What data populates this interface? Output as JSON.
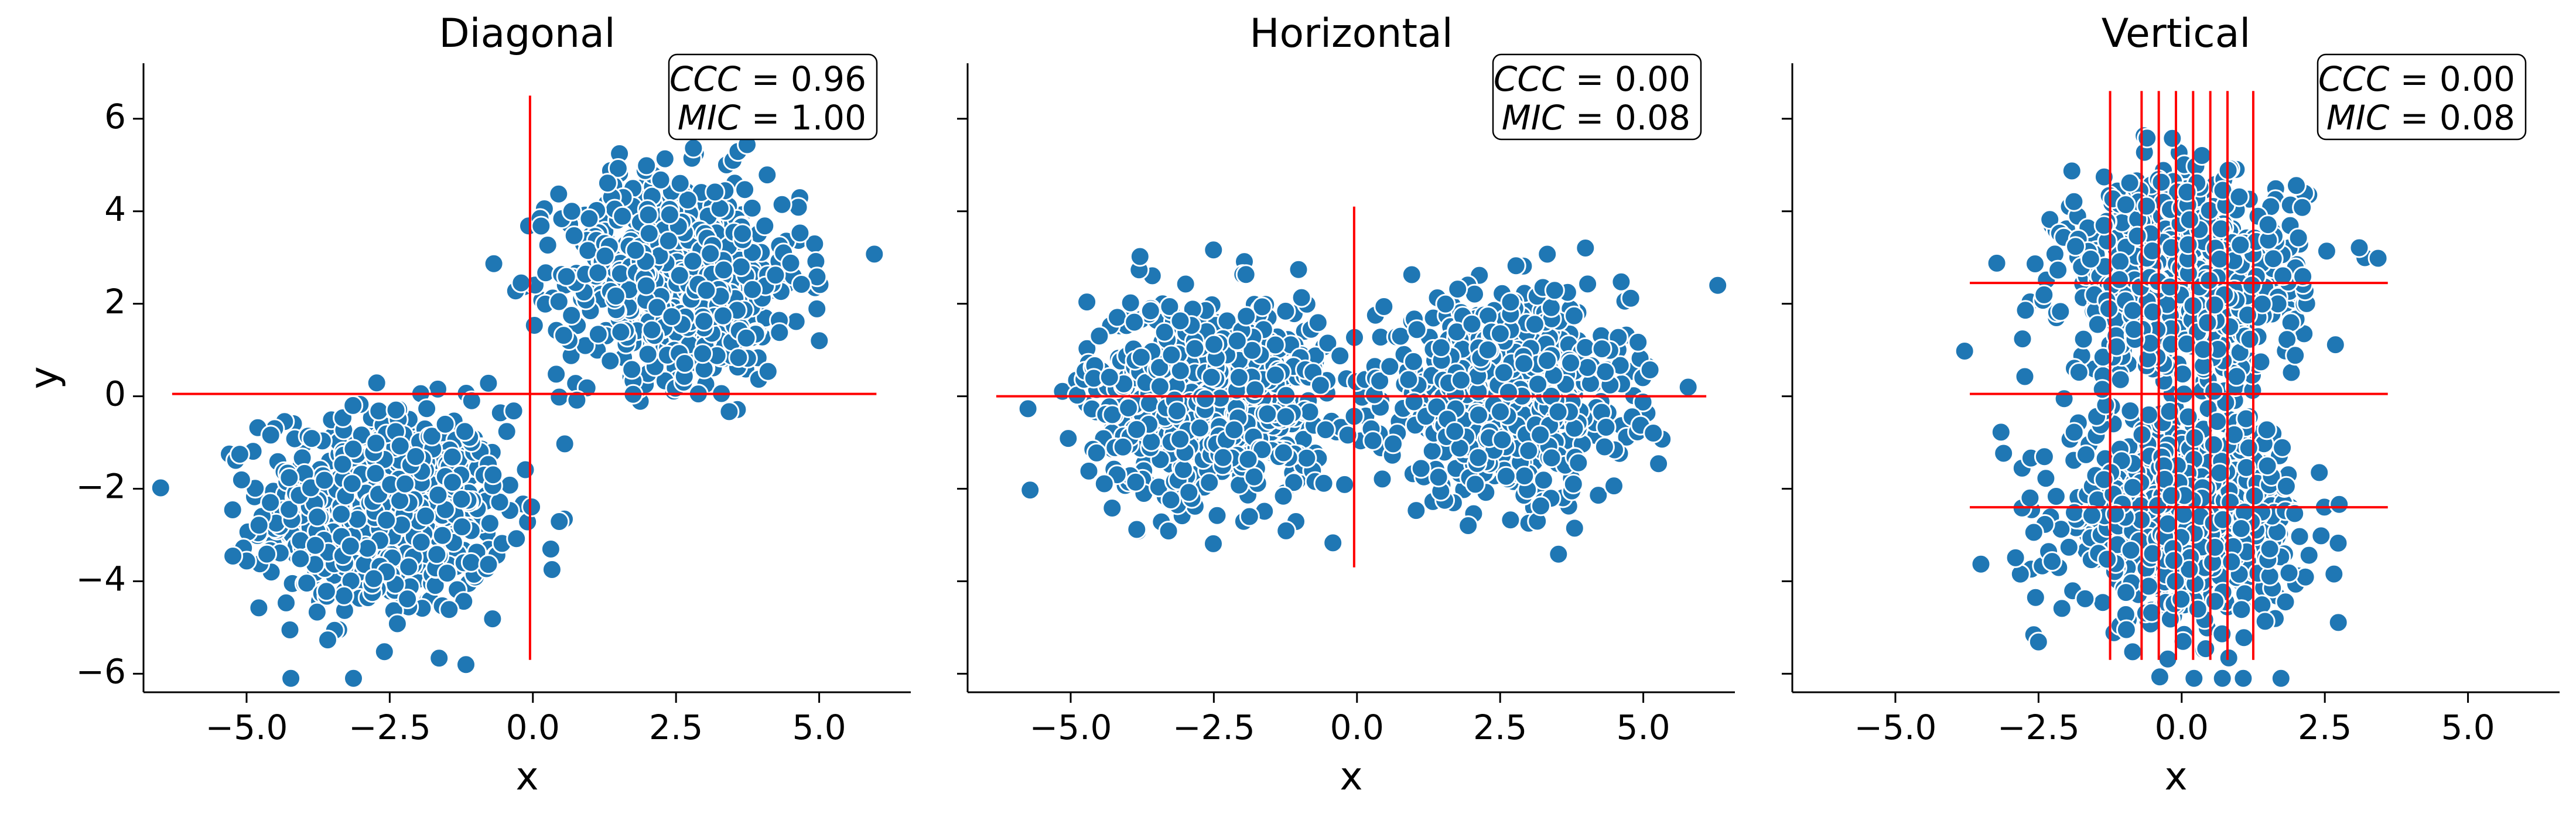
{
  "chart_data": [
    {
      "type": "scatter",
      "title": "Diagonal",
      "xlabel": "x",
      "ylabel": "y",
      "xlim": [
        -6.8,
        6.6
      ],
      "ylim": [
        -6.4,
        7.2
      ],
      "xticks": [
        -5.0,
        -2.5,
        0.0,
        2.5,
        5.0
      ],
      "xtick_labels": [
        "−5.0",
        "−2.5",
        "0.0",
        "2.5",
        "5.0"
      ],
      "yticks": [
        -6,
        -4,
        -2,
        0,
        2,
        4,
        6
      ],
      "ytick_labels": [
        "−6",
        "−4",
        "−2",
        "0",
        "2",
        "4",
        "6"
      ],
      "stats": [
        {
          "label": "CCC",
          "value": "0.96"
        },
        {
          "label": "MIC",
          "value": "1.00"
        }
      ],
      "clusters": [
        {
          "cx": -2.6,
          "cy": -2.5,
          "sx": 1.05,
          "sy": 1.1,
          "n": 700
        },
        {
          "cx": 2.6,
          "cy": 2.6,
          "sx": 1.05,
          "sy": 1.1,
          "n": 700
        }
      ],
      "point_color": "#1f77b4",
      "grid_color": "#ff0000",
      "grid_lines": {
        "vertical": [
          {
            "x": -0.05,
            "y": [
              -5.7,
              6.5
            ]
          }
        ],
        "horizontal": [
          {
            "y": 0.05,
            "x": [
              -6.3,
              6.0
            ]
          }
        ]
      },
      "grid": false
    },
    {
      "type": "scatter",
      "title": "Horizontal",
      "xlabel": "x",
      "ylabel": "",
      "xlim": [
        -6.8,
        6.6
      ],
      "ylim": [
        -6.4,
        7.2
      ],
      "xticks": [
        -5.0,
        -2.5,
        0.0,
        2.5,
        5.0
      ],
      "xtick_labels": [
        "−5.0",
        "−2.5",
        "0.0",
        "2.5",
        "5.0"
      ],
      "yticks": [
        -6,
        -4,
        -2,
        0,
        2,
        4,
        6
      ],
      "ytick_labels": [],
      "stats": [
        {
          "label": "CCC",
          "value": "0.00"
        },
        {
          "label": "MIC",
          "value": "0.08"
        }
      ],
      "clusters": [
        {
          "cx": -2.6,
          "cy": 0.0,
          "sx": 1.05,
          "sy": 1.1,
          "n": 700
        },
        {
          "cx": 2.6,
          "cy": 0.0,
          "sx": 1.05,
          "sy": 1.1,
          "n": 700
        }
      ],
      "point_color": "#1f77b4",
      "grid_color": "#ff0000",
      "grid_lines": {
        "vertical": [
          {
            "x": -0.05,
            "y": [
              -3.7,
              4.1
            ]
          }
        ],
        "horizontal": [
          {
            "y": 0.0,
            "x": [
              -6.3,
              6.1
            ]
          }
        ]
      },
      "grid": false
    },
    {
      "type": "scatter",
      "title": "Vertical",
      "xlabel": "x",
      "ylabel": "",
      "xlim": [
        -6.8,
        6.6
      ],
      "ylim": [
        -6.4,
        7.2
      ],
      "xticks": [
        -5.0,
        -2.5,
        0.0,
        2.5,
        5.0
      ],
      "xtick_labels": [
        "−5.0",
        "−2.5",
        "0.0",
        "2.5",
        "5.0"
      ],
      "yticks": [
        -6,
        -4,
        -2,
        0,
        2,
        4,
        6
      ],
      "ytick_labels": [],
      "stats": [
        {
          "label": "CCC",
          "value": "0.00"
        },
        {
          "label": "MIC",
          "value": "0.08"
        }
      ],
      "clusters": [
        {
          "cx": 0.0,
          "cy": -2.6,
          "sx": 1.05,
          "sy": 1.1,
          "n": 700
        },
        {
          "cx": 0.0,
          "cy": 2.6,
          "sx": 1.05,
          "sy": 1.1,
          "n": 700
        }
      ],
      "point_color": "#1f77b4",
      "grid_color": "#ff0000",
      "grid_lines": {
        "vertical": [
          {
            "x": -1.25,
            "y": [
              -5.7,
              6.6
            ]
          },
          {
            "x": -0.7,
            "y": [
              -5.7,
              6.6
            ]
          },
          {
            "x": -0.4,
            "y": [
              -5.7,
              6.6
            ]
          },
          {
            "x": -0.1,
            "y": [
              -5.7,
              6.6
            ]
          },
          {
            "x": 0.2,
            "y": [
              -5.7,
              6.6
            ]
          },
          {
            "x": 0.5,
            "y": [
              -5.7,
              6.6
            ]
          },
          {
            "x": 0.8,
            "y": [
              -5.7,
              6.6
            ]
          },
          {
            "x": 1.25,
            "y": [
              -5.7,
              6.6
            ]
          }
        ],
        "horizontal": [
          {
            "y": 2.45,
            "x": [
              -3.7,
              3.6
            ]
          },
          {
            "y": 0.05,
            "x": [
              -3.7,
              3.6
            ]
          },
          {
            "y": -2.4,
            "x": [
              -3.7,
              3.6
            ]
          }
        ]
      },
      "grid": false
    }
  ]
}
